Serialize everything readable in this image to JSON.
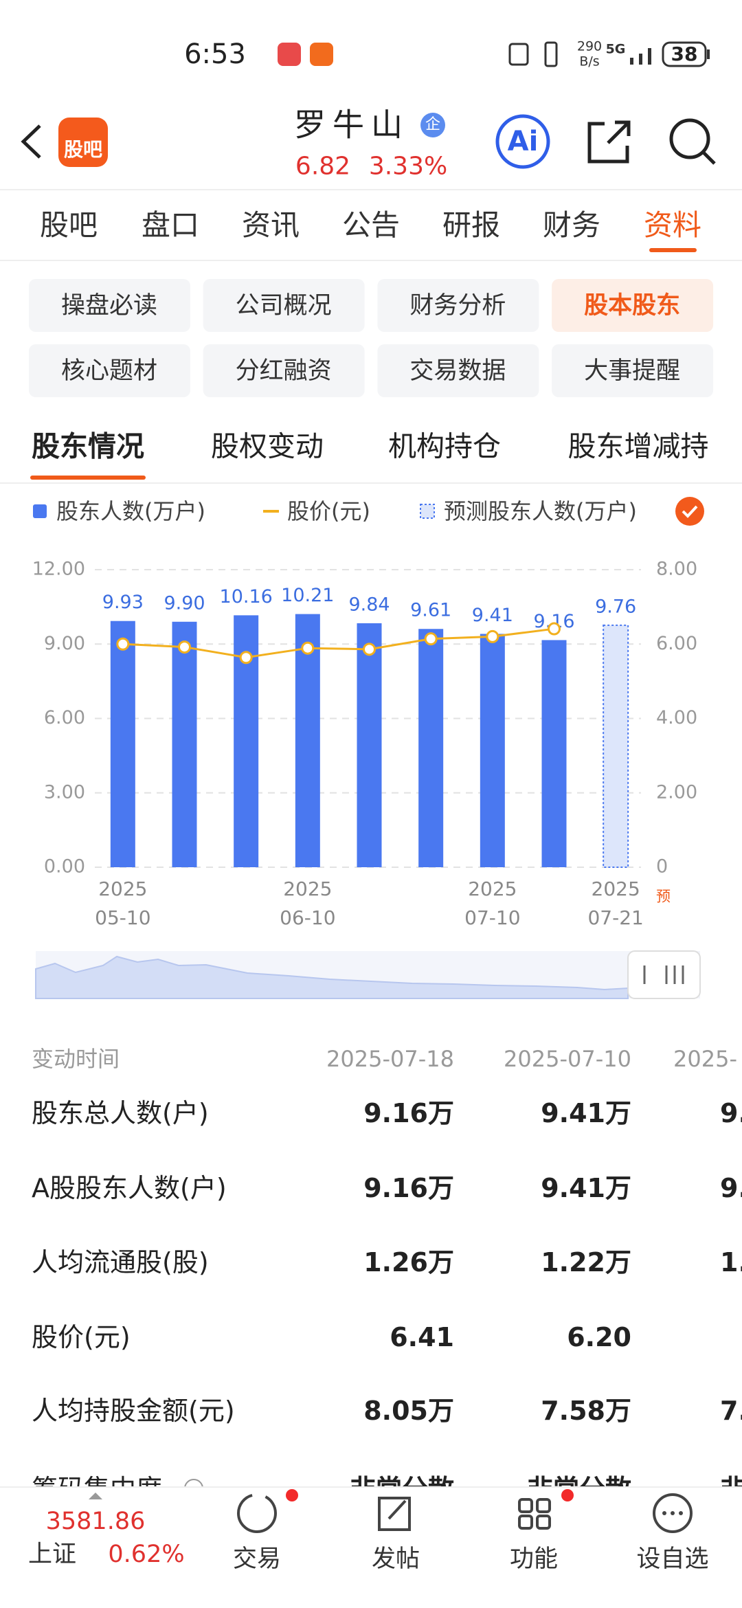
{
  "status_bar": {
    "time": "6:53",
    "net_speed": "290",
    "net_unit": "B/s",
    "network": "5G",
    "battery": "38"
  },
  "header": {
    "logo": "股吧",
    "name": "罗牛山",
    "badge": "企",
    "price": "6.82",
    "change": "3.33%",
    "ai": "Ai"
  },
  "tabs": {
    "items": [
      "股吧",
      "盘口",
      "资讯",
      "公告",
      "研报",
      "财务",
      "资料"
    ],
    "active": 6
  },
  "sub_menu": {
    "items": [
      "操盘必读",
      "公司概况",
      "财务分析",
      "股本股东",
      "核心题材",
      "分红融资",
      "交易数据",
      "大事提醒"
    ],
    "active": 3
  },
  "section_tabs": {
    "items": [
      "股东情况",
      "股权变动",
      "机构持仓",
      "股东增减持"
    ],
    "active": 0
  },
  "chart_data": {
    "type": "bar",
    "categories": [
      "2025\n05-10",
      null,
      null,
      "2025\n06-10",
      null,
      null,
      "2025\n07-10",
      null,
      "2025\n07-21"
    ],
    "annotation": "预",
    "value_label_color": "#3b6de0",
    "series": [
      {
        "name": "股东人数(万户)",
        "type": "bar",
        "color": "#4a78f0",
        "values": [
          9.93,
          9.9,
          10.16,
          10.21,
          9.84,
          9.61,
          9.41,
          9.16,
          null
        ],
        "value_labels": [
          "9.93",
          "9.90",
          "10.16",
          "10.21",
          "9.84",
          "9.61",
          "9.41",
          "9.16",
          null
        ]
      },
      {
        "name": "股价(元)",
        "type": "line",
        "axis": "y2",
        "color": "#f2b01e",
        "values": [
          6.0,
          5.92,
          5.64,
          5.89,
          5.86,
          6.14,
          6.2,
          6.41,
          null
        ]
      },
      {
        "name": "预测股东人数(万户)",
        "type": "bar",
        "style": "dotted",
        "color": "#4a78f0",
        "values": [
          null,
          null,
          null,
          null,
          null,
          null,
          null,
          null,
          9.76
        ],
        "value_labels": [
          null,
          null,
          null,
          null,
          null,
          null,
          null,
          null,
          "9.76"
        ]
      }
    ],
    "ylim": [
      0,
      12
    ],
    "yticks": [
      {
        "value": 0,
        "label": "0.00"
      },
      {
        "value": 3,
        "label": "3.00"
      },
      {
        "value": 6,
        "label": "6.00"
      },
      {
        "value": 9,
        "label": "9.00"
      },
      {
        "value": 12,
        "label": "12.00"
      }
    ],
    "y2lim": [
      0,
      8
    ],
    "y2ticks": [
      0,
      {
        "value": 2,
        "label": "2.00"
      },
      {
        "value": 4,
        "label": "4.00"
      },
      {
        "value": 6,
        "label": "6.00"
      },
      {
        "value": 8,
        "label": "8.00"
      }
    ],
    "grid": true
  },
  "table": {
    "header": [
      "变动时间",
      "2025-07-18",
      "2025-07-10",
      "2025-"
    ],
    "rows": [
      [
        "股东总人数(户)",
        "9.16万",
        "9.41万",
        "9."
      ],
      [
        "A股股东人数(户)",
        "9.16万",
        "9.41万",
        "9."
      ],
      [
        "人均流通股(股)",
        "1.26万",
        "1.22万",
        "1."
      ],
      [
        "股价(元)",
        "6.41",
        "6.20"
      ],
      [
        "人均持股金额(元)",
        "8.05万",
        "7.58万",
        "7."
      ],
      [
        "筹码集中度",
        "非常分散",
        "非常分散",
        "非常"
      ]
    ]
  },
  "bottom_bar": {
    "index_value": "3581.86",
    "index_name": "上证",
    "index_change": "0.62%",
    "items": [
      "交易",
      "发帖",
      "功能",
      "设自选"
    ]
  }
}
